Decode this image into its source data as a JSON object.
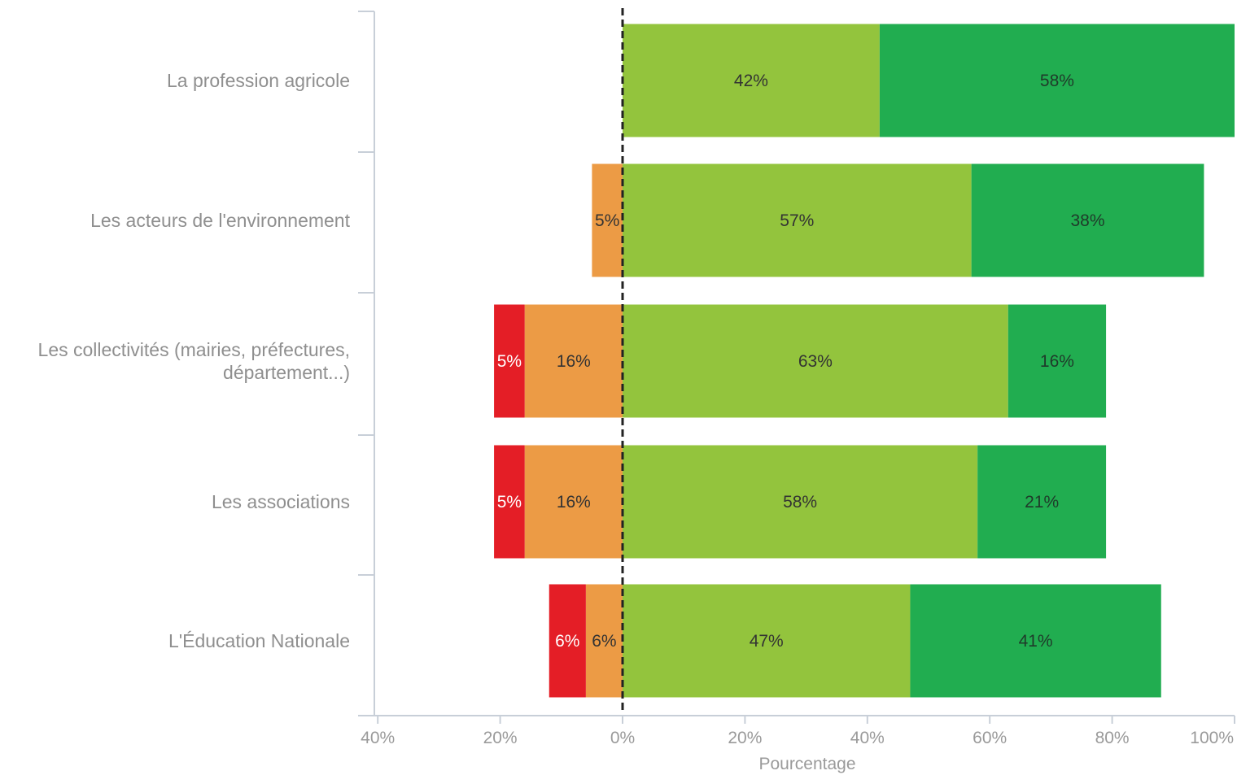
{
  "chart_data": {
    "type": "bar",
    "orientation": "horizontal",
    "stacked": true,
    "diverging": true,
    "categories": [
      "La profession agricole",
      "Les acteurs de l'environnement",
      "Les collectivités (mairies, préfectures, département...)",
      "Les associations",
      "L'Éducation Nationale"
    ],
    "category_lines": [
      [
        "La profession agricole"
      ],
      [
        "Les acteurs de l'environnement"
      ],
      [
        "Les collectivités (mairies, préfectures,",
        "département...)"
      ],
      [
        "Les associations"
      ],
      [
        "L'Éducation Nationale"
      ]
    ],
    "series": [
      {
        "color": "#e41e26",
        "side": "negative",
        "values": [
          0,
          0,
          5,
          5,
          6
        ],
        "labels": [
          "",
          "",
          "5%",
          "5%",
          "6%"
        ],
        "label_color": "#ffffff"
      },
      {
        "color": "#ec9b45",
        "side": "negative",
        "values": [
          0,
          5,
          16,
          16,
          6
        ],
        "labels": [
          "",
          "5%",
          "16%",
          "16%",
          "6%"
        ],
        "label_color": "#333333"
      },
      {
        "color": "#93c43d",
        "side": "positive",
        "values": [
          42,
          57,
          63,
          58,
          47
        ],
        "labels": [
          "42%",
          "57%",
          "63%",
          "58%",
          "47%"
        ],
        "label_color": "#333333"
      },
      {
        "color": "#21ad50",
        "side": "positive",
        "values": [
          58,
          38,
          16,
          21,
          41
        ],
        "labels": [
          "58%",
          "38%",
          "16%",
          "21%",
          "41%"
        ],
        "label_color": "#1f3a2a"
      }
    ],
    "xlim": [
      -40,
      100
    ],
    "xticks": [
      -40,
      -20,
      0,
      20,
      40,
      60,
      80,
      100
    ],
    "xtick_labels": [
      "40%",
      "20%",
      "0%",
      "20%",
      "40%",
      "60%",
      "80%",
      "100%"
    ],
    "xlabel": "Pourcentage",
    "zero_line": "dashed",
    "grid": false,
    "legend": "none"
  }
}
